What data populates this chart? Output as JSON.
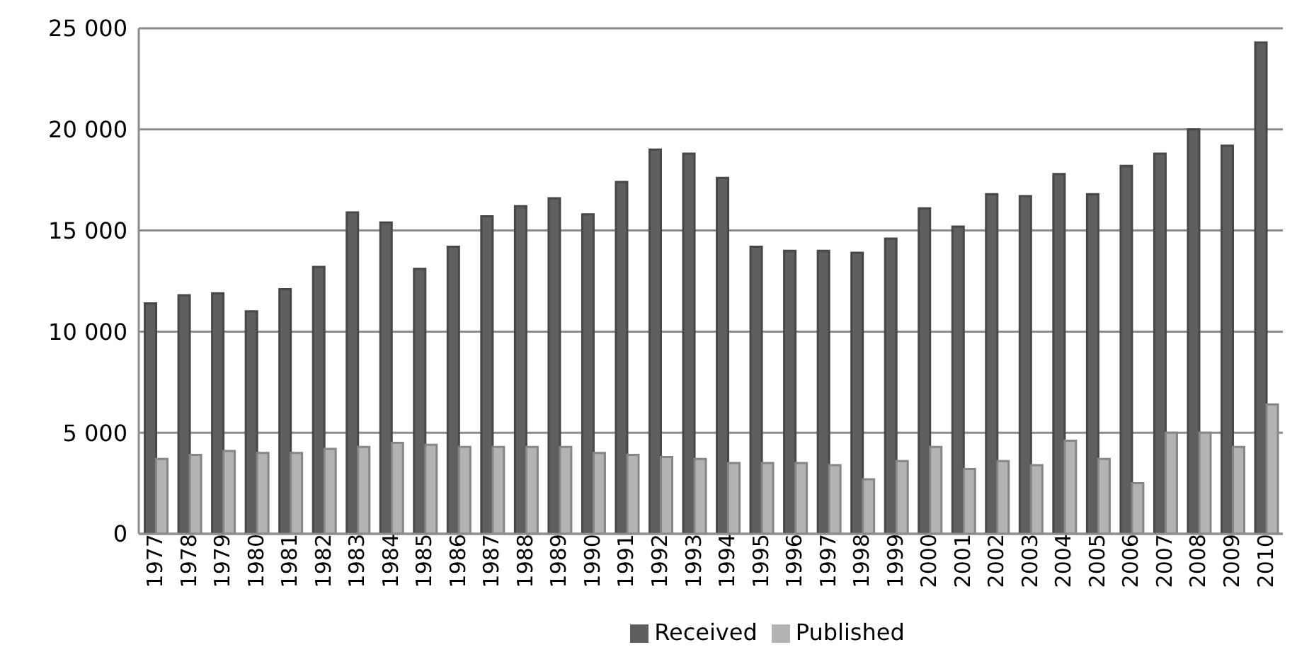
{
  "chart_data": {
    "type": "bar",
    "categories": [
      "1977",
      "1978",
      "1979",
      "1980",
      "1981",
      "1982",
      "1983",
      "1984",
      "1985",
      "1986",
      "1987",
      "1988",
      "1989",
      "1990",
      "1991",
      "1992",
      "1993",
      "1994",
      "1995",
      "1996",
      "1997",
      "1998",
      "1999",
      "2000",
      "2001",
      "2002",
      "2003",
      "2004",
      "2005",
      "2006",
      "2007",
      "2008",
      "2009",
      "2010"
    ],
    "series": [
      {
        "name": "Received",
        "color": "#5f5f5f",
        "values": [
          11400,
          11800,
          11900,
          11000,
          12100,
          13200,
          15900,
          15400,
          13100,
          14200,
          15700,
          16200,
          16600,
          15800,
          17400,
          19000,
          18800,
          17600,
          14200,
          14000,
          14000,
          13900,
          14600,
          16100,
          15200,
          16800,
          16700,
          17800,
          16800,
          18200,
          18800,
          20000,
          19200,
          24300
        ]
      },
      {
        "name": "Published",
        "color": "#b3b3b3",
        "values": [
          3700,
          3900,
          4100,
          4000,
          4000,
          4200,
          4300,
          4500,
          4400,
          4300,
          4300,
          4300,
          4300,
          4000,
          3900,
          3800,
          3700,
          3500,
          3500,
          3500,
          3400,
          2700,
          3600,
          4300,
          3200,
          3600,
          3400,
          4600,
          3700,
          2500,
          5000,
          5000,
          4300,
          6400
        ]
      }
    ],
    "ylim": [
      0,
      25000
    ],
    "yticks": [
      {
        "value": 0,
        "label": "0"
      },
      {
        "value": 5000,
        "label": "5 000"
      },
      {
        "value": 10000,
        "label": "10 000"
      },
      {
        "value": 15000,
        "label": "15 000"
      },
      {
        "value": 20000,
        "label": "20 000"
      },
      {
        "value": 25000,
        "label": "25 000"
      }
    ],
    "grid": "y",
    "legend": "bottom"
  }
}
